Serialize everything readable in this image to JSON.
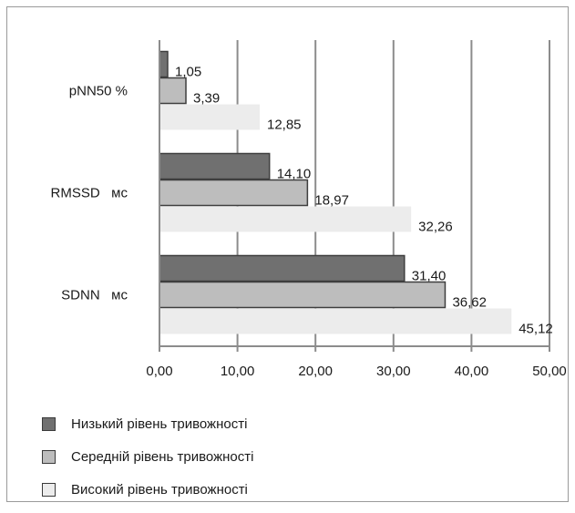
{
  "chart_data": {
    "type": "bar",
    "orientation": "horizontal",
    "categories": [
      "pNN50 %",
      "RMSSD   мс",
      "SDNN   мс"
    ],
    "series": [
      {
        "name": "Низький рівень тривожності",
        "color": "#707070",
        "values": [
          1.05,
          14.1,
          31.4
        ],
        "labels": [
          "1,05",
          "14,10",
          "31,40"
        ]
      },
      {
        "name": "Середній рівень тривожності",
        "color": "#bdbdbd",
        "values": [
          3.39,
          18.97,
          36.62
        ],
        "labels": [
          "3,39",
          "18,97",
          "36,62"
        ]
      },
      {
        "name": "Високий рівень тривожності",
        "color": "#ececec",
        "values": [
          12.85,
          32.26,
          45.12
        ],
        "labels": [
          "12,85",
          "32,26",
          "45,12"
        ]
      }
    ],
    "xlim": [
      0,
      50
    ],
    "xticks": [
      "0,00",
      "10,00",
      "20,00",
      "30,00",
      "40,00",
      "50,00"
    ],
    "grid": "vertical",
    "legend_position": "bottom"
  }
}
